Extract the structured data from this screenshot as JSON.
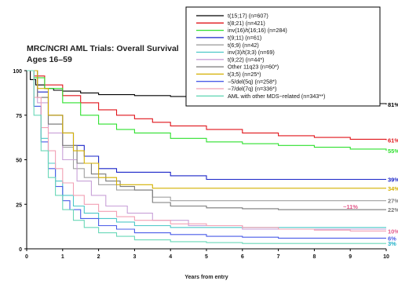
{
  "chart_data": {
    "type": "line",
    "step": true,
    "title_line1": "MRC/NCRI AML Trials: Overall Survival",
    "title_line2": "Ages 16–59",
    "xlabel": "Years from entry",
    "ylabel": "",
    "xlim": [
      0,
      10
    ],
    "ylim": [
      0,
      100
    ],
    "x_ticks": [
      "0",
      "1",
      "2",
      "3",
      "4",
      "5",
      "6",
      "7",
      "8",
      "9",
      "10"
    ],
    "y_ticks": [
      "0",
      "25",
      "50",
      "75",
      "100"
    ],
    "grid": false,
    "legend_position": "top-right",
    "annotation": "~11%",
    "series": [
      {
        "name": "t(15;17) (n=607)",
        "color": "#000000",
        "end_label": "81%",
        "label_color": "#000000",
        "x": [
          0,
          0.1,
          0.25,
          0.5,
          0.75,
          1,
          1.5,
          2,
          3,
          4,
          5,
          6,
          7,
          8,
          9,
          9.5,
          10
        ],
        "y": [
          100,
          95,
          92,
          90,
          89,
          88.5,
          87.5,
          86.5,
          86,
          85.5,
          85,
          84.5,
          84,
          83.5,
          82.5,
          81.5,
          81
        ]
      },
      {
        "name": "t(8;21) (n=421)",
        "color": "#e0151b",
        "end_label": "61%",
        "label_color": "#e0151b",
        "x": [
          0,
          0.2,
          0.5,
          1,
          1.5,
          2,
          2.5,
          3,
          3.5,
          4,
          5,
          6,
          7,
          8,
          9,
          10
        ],
        "y": [
          100,
          97,
          92,
          86,
          82,
          78,
          75,
          73,
          71,
          69,
          67,
          65,
          63.5,
          62.5,
          61.5,
          61
        ]
      },
      {
        "name": "inv(16)/t(16;16) (n=284)",
        "color": "#2ee02e",
        "end_label": "55%",
        "label_color": "#2ee02e",
        "x": [
          0,
          0.2,
          0.5,
          1,
          1.5,
          2,
          2.5,
          3,
          4,
          5,
          6,
          7,
          8,
          9,
          10
        ],
        "y": [
          100,
          96,
          90,
          82,
          75,
          70,
          67,
          65,
          62,
          60,
          59,
          58,
          57,
          56,
          55
        ]
      },
      {
        "name": "t(9;11) (n=61)",
        "color": "#1a24c8",
        "end_label": "39%",
        "label_color": "#1a24c8",
        "x": [
          0,
          0.3,
          0.6,
          1,
          1.3,
          1.6,
          2,
          2.5,
          3,
          4,
          5,
          6,
          7,
          8,
          9,
          10
        ],
        "y": [
          100,
          88,
          75,
          65,
          58,
          52,
          45,
          43,
          43,
          41,
          39,
          39,
          39,
          39,
          39,
          39
        ]
      },
      {
        "name": "t(6;9) (n=42)",
        "color": "#a0a0a0",
        "end_label": "27%",
        "label_color": "#7a7a7a",
        "x": [
          0,
          0.3,
          0.6,
          1,
          1.3,
          1.6,
          2,
          2.5,
          3,
          3.5,
          4,
          5,
          6,
          7,
          8,
          9,
          10
        ],
        "y": [
          100,
          85,
          70,
          57,
          45,
          40,
          36,
          33,
          33,
          29,
          27,
          27,
          27,
          27,
          27,
          27,
          27
        ]
      },
      {
        "name": "inv(3)/t(3;3) (n=69)",
        "color": "#4cc8c8",
        "end_label": "",
        "label_color": "#4cc8c8",
        "x": [
          0,
          0.2,
          0.4,
          0.6,
          0.8,
          1,
          1.3,
          1.6,
          2,
          2.5,
          3,
          4,
          5,
          6,
          7,
          8,
          9,
          10
        ],
        "y": [
          100,
          80,
          62,
          48,
          38,
          30,
          24,
          20,
          17,
          15,
          13,
          12,
          12,
          12,
          12,
          12,
          12,
          12
        ]
      },
      {
        "name": "t(9;22) (n=44*)",
        "color": "#c8a0d8",
        "end_label": "",
        "label_color": "#c8a0d8",
        "x": [
          0,
          0.3,
          0.6,
          1,
          1.4,
          1.8,
          2.2,
          2.8,
          3.5,
          4.5,
          6,
          7,
          8,
          9,
          10
        ],
        "y": [
          100,
          82,
          65,
          50,
          38,
          30,
          24,
          20,
          16,
          13,
          11,
          11,
          11,
          11,
          11
        ]
      },
      {
        "name": "Other 11q23 (n=60*)",
        "color": "#7a7a7a",
        "end_label": "22%",
        "label_color": "#7a7a7a",
        "x": [
          0,
          0.3,
          0.6,
          1,
          1.4,
          1.8,
          2.2,
          2.6,
          3,
          3.5,
          4,
          5,
          6,
          7,
          8,
          9,
          10
        ],
        "y": [
          100,
          85,
          70,
          58,
          48,
          42,
          38,
          35,
          33,
          26,
          24,
          23,
          22.5,
          22,
          22,
          22,
          22
        ]
      },
      {
        "name": "t(3;5) (n=25*)",
        "color": "#d4b000",
        "end_label": "34%",
        "label_color": "#d4b000",
        "x": [
          0,
          0.3,
          0.6,
          1,
          1.3,
          1.6,
          2,
          2.5,
          3,
          3.5,
          4,
          5,
          6,
          7,
          8,
          9,
          10
        ],
        "y": [
          100,
          90,
          75,
          65,
          55,
          48,
          40,
          36,
          36,
          34,
          34,
          34,
          34,
          34,
          34,
          34,
          34
        ]
      },
      {
        "name": "−5/del(5q) (n=258*)",
        "color": "#4a5ce8",
        "end_label": "6%",
        "label_color": "#4a5ce8",
        "x": [
          0,
          0.2,
          0.4,
          0.6,
          0.8,
          1,
          1.2,
          1.5,
          2,
          2.5,
          3,
          4,
          5,
          6,
          7,
          8,
          9,
          10
        ],
        "y": [
          100,
          80,
          60,
          45,
          35,
          27,
          22,
          17,
          13,
          11,
          9,
          8,
          7,
          6.5,
          6,
          6,
          6,
          6
        ]
      },
      {
        "name": "−7/del(7q) (n=336*)",
        "color": "#f2a0b4",
        "end_label": "10%",
        "label_color": "#e35a8a",
        "x": [
          0,
          0.2,
          0.4,
          0.6,
          0.8,
          1,
          1.3,
          1.6,
          2,
          2.5,
          3,
          4,
          5,
          6,
          7,
          8,
          9,
          10
        ],
        "y": [
          100,
          85,
          68,
          55,
          45,
          37,
          30,
          25,
          21,
          18,
          16,
          14,
          13,
          12,
          11,
          10.5,
          10,
          10
        ]
      },
      {
        "name": "AML with other MDS−related (n=343**)",
        "color": "#6ad8b8",
        "end_label": "3%",
        "label_color": "#1fb0c8",
        "x": [
          0,
          0.2,
          0.4,
          0.6,
          0.8,
          1,
          1.3,
          1.6,
          2,
          2.5,
          3,
          4,
          5,
          6,
          7,
          8,
          9,
          10
        ],
        "y": [
          100,
          75,
          55,
          40,
          30,
          22,
          16,
          12,
          9,
          7,
          5,
          4,
          3.5,
          3,
          3,
          3,
          3,
          3
        ]
      }
    ]
  }
}
